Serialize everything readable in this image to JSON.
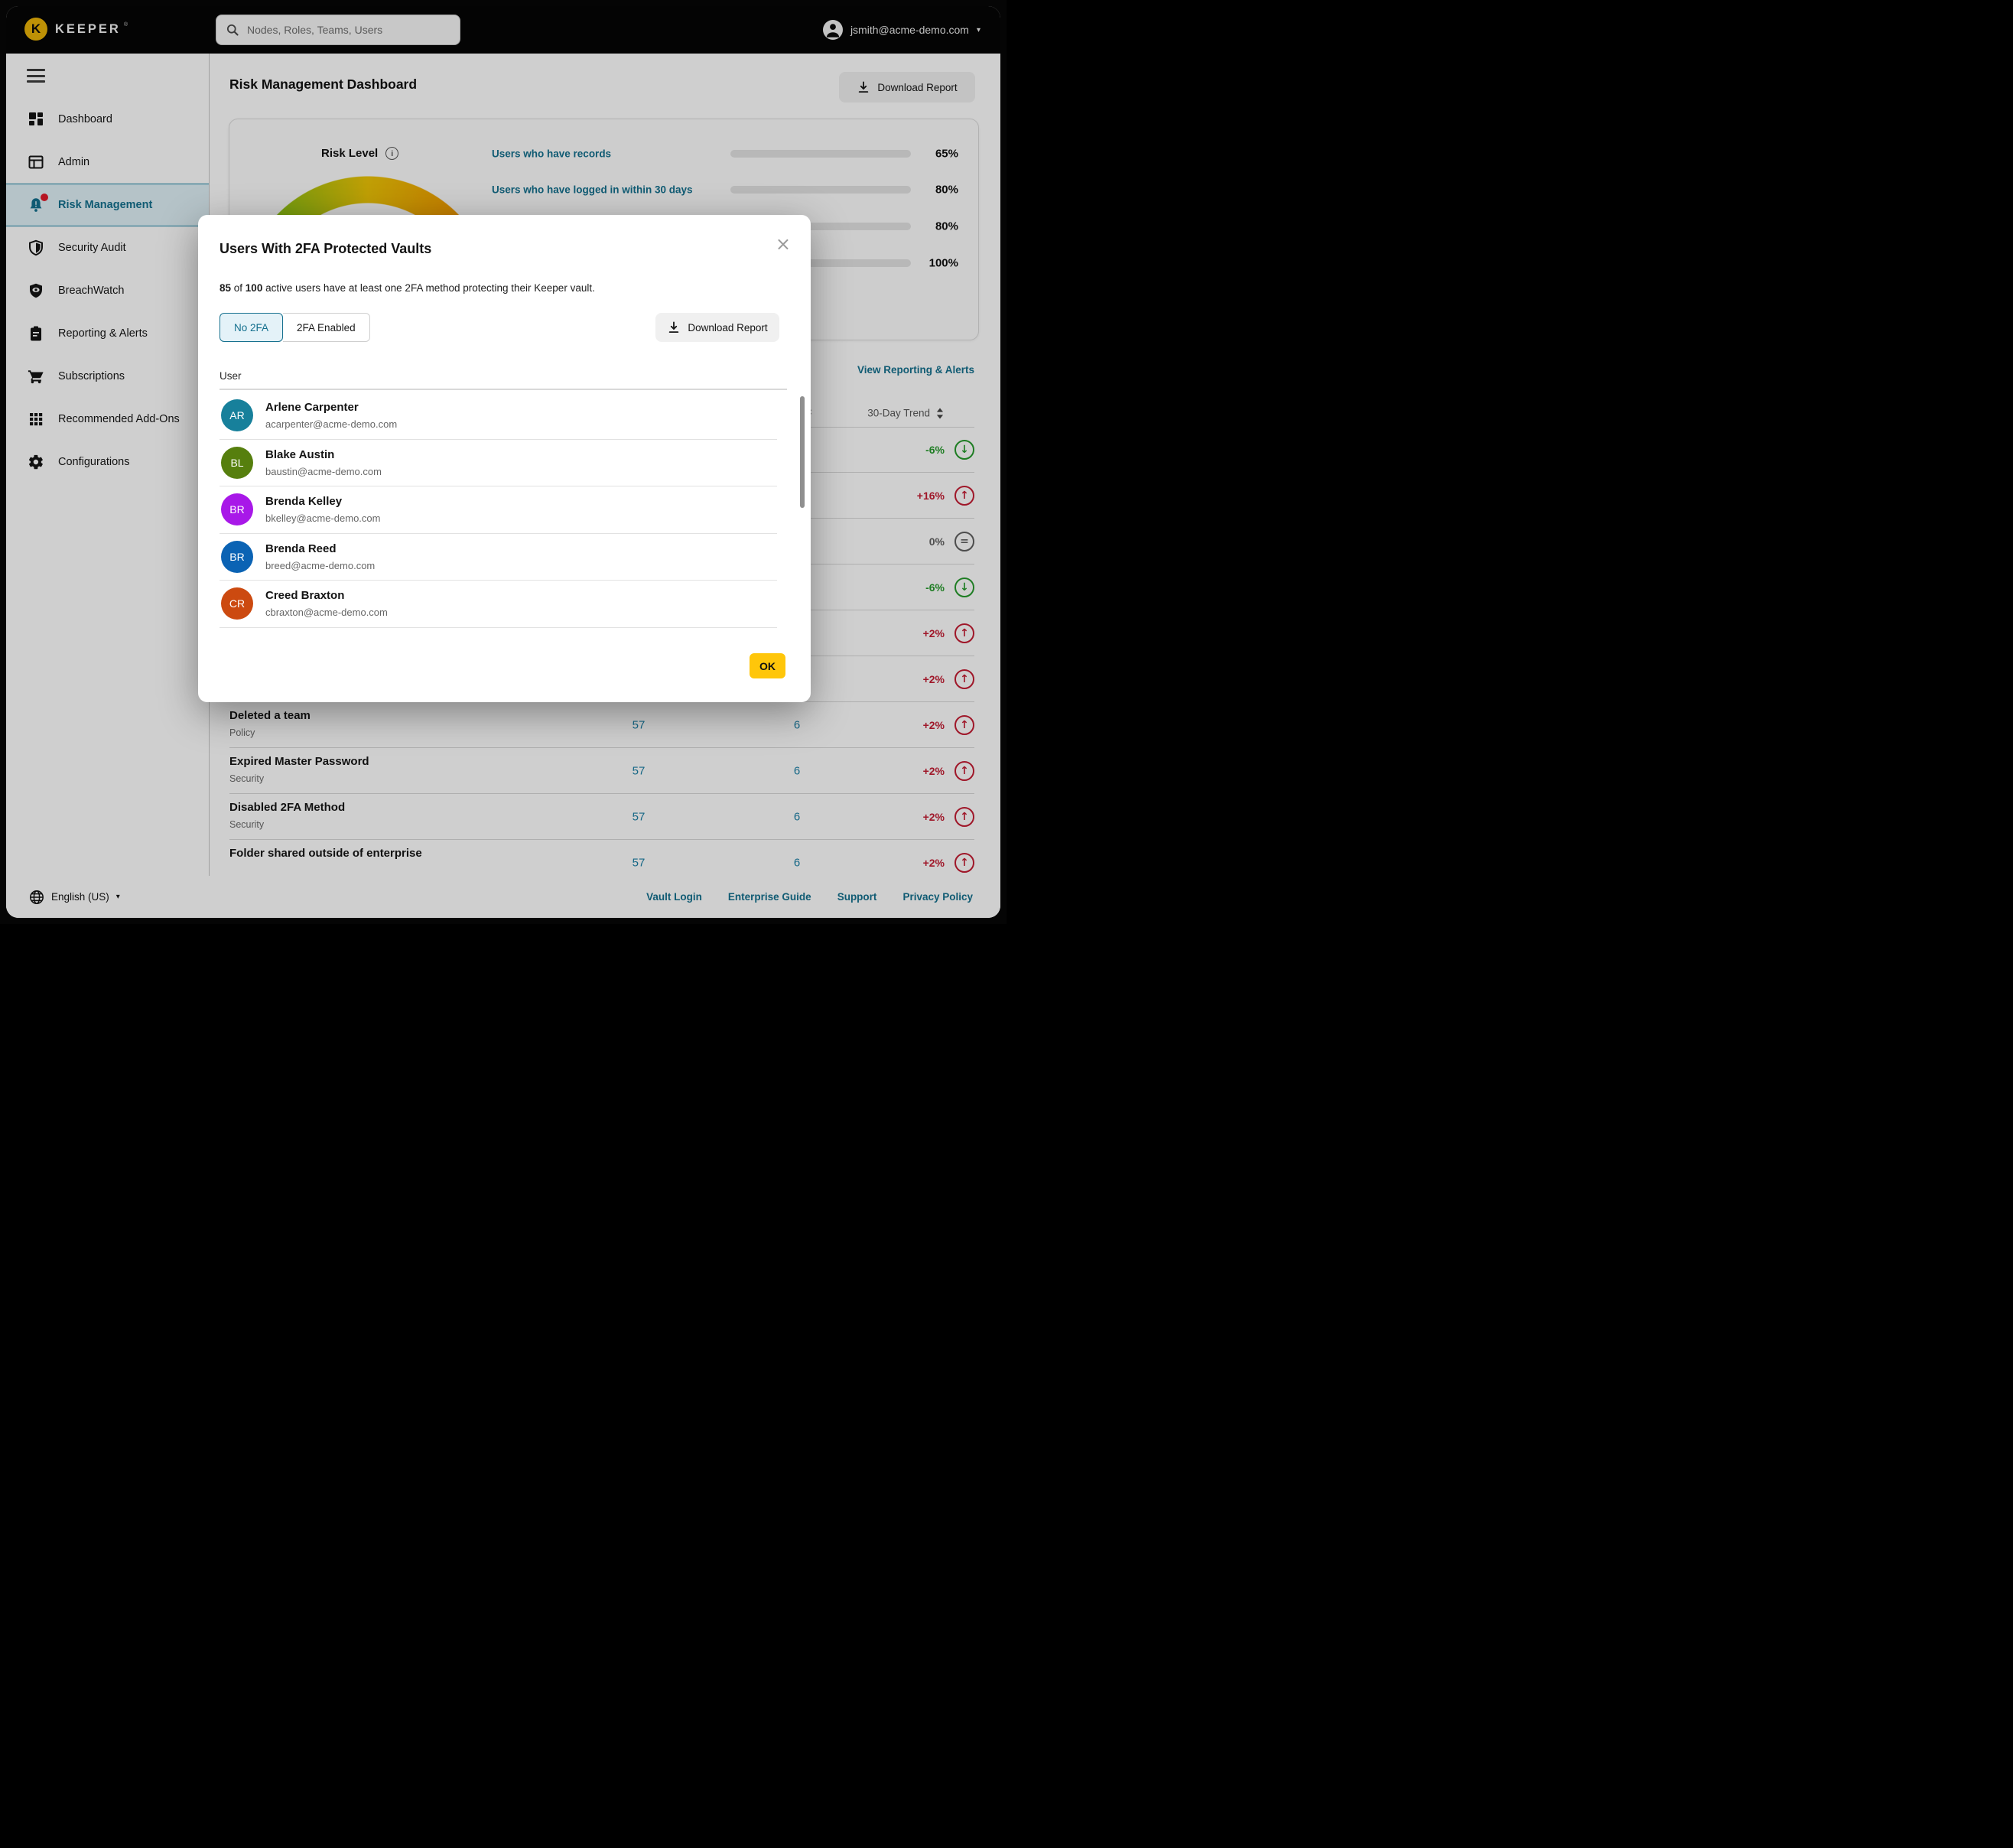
{
  "topbar": {
    "brand": "KEEPER",
    "brand_registered": "®",
    "search_placeholder": "Nodes, Roles, Teams, Users",
    "user_email": "jsmith@acme-demo.com",
    "caret": "▾"
  },
  "sidebar": {
    "items": [
      {
        "label": "Dashboard"
      },
      {
        "label": "Admin"
      },
      {
        "label": "Risk Management",
        "active": true
      },
      {
        "label": "Security Audit"
      },
      {
        "label": "BreachWatch"
      },
      {
        "label": "Reporting & Alerts"
      },
      {
        "label": "Subscriptions"
      },
      {
        "label": "Recommended Add-Ons"
      },
      {
        "label": "Configurations"
      }
    ]
  },
  "header": {
    "title": "Risk Management Dashboard",
    "download_report": "Download Report"
  },
  "risk_card": {
    "title": "Risk Level",
    "info_icon": "i",
    "metrics": [
      {
        "label": "Users who have records",
        "percent": "65%",
        "value": 65,
        "color": "#e87b00"
      },
      {
        "label": "Users who have logged in within 30 days",
        "percent": "80%",
        "value": 80,
        "color": "#2da23b"
      },
      {
        "label": "",
        "percent": "80%",
        "value": 80,
        "color": "#2da23b"
      },
      {
        "label": "",
        "percent": "100%",
        "value": 100,
        "color": "#2da23b"
      }
    ]
  },
  "reporting": {
    "view_link": "View Reporting & Alerts",
    "trend_column": "30-Day Trend",
    "partial_trends": [
      {
        "trend": "-6%",
        "dir": "down",
        "icon": "↓"
      },
      {
        "trend": "+16%",
        "dir": "up",
        "icon": "↑"
      },
      {
        "trend": "0%",
        "dir": "flat",
        "icon": "="
      },
      {
        "trend": "-6%",
        "dir": "down",
        "icon": "↓"
      },
      {
        "trend": "+2%",
        "dir": "up",
        "icon": "↑"
      },
      {
        "trend": "+2%",
        "dir": "up",
        "icon": "↑"
      }
    ],
    "rows": [
      {
        "name": "Deleted a team",
        "category": "Policy",
        "count": "57",
        "affected": "6",
        "trend": "+2%",
        "dir": "up",
        "icon": "↑"
      },
      {
        "name": "Expired Master Password",
        "category": "Security",
        "count": "57",
        "affected": "6",
        "trend": "+2%",
        "dir": "up",
        "icon": "↑"
      },
      {
        "name": "Disabled 2FA Method",
        "category": "Security",
        "count": "57",
        "affected": "6",
        "trend": "+2%",
        "dir": "up",
        "icon": "↑"
      },
      {
        "name": "Folder shared outside of enterprise",
        "category": "",
        "count": "57",
        "affected": "6",
        "trend": "+2%",
        "dir": "up",
        "icon": "↑"
      }
    ]
  },
  "modal": {
    "title": "Users With 2FA Protected Vaults",
    "close_icon": "×",
    "summary": {
      "bold1": "85",
      "mid": " of ",
      "bold2": "100",
      "rest": " active users have at least one 2FA method protecting their Keeper vault."
    },
    "tabs": [
      {
        "label": "No 2FA",
        "active": true
      },
      {
        "label": "2FA Enabled",
        "active": false
      }
    ],
    "download_report": "Download Report",
    "user_column": "User",
    "users": [
      {
        "initials": "AR",
        "name": "Arlene Carpenter",
        "email": "acarpenter@acme-demo.com",
        "color": "#17809b"
      },
      {
        "initials": "BL",
        "name": "Blake Austin",
        "email": "baustin@acme-demo.com",
        "color": "#567f0e"
      },
      {
        "initials": "BR",
        "name": "Brenda Kelley",
        "email": "bkelley@acme-demo.com",
        "color": "#a818e8"
      },
      {
        "initials": "BR",
        "name": "Brenda Reed",
        "email": "breed@acme-demo.com",
        "color": "#0b63b4"
      },
      {
        "initials": "CR",
        "name": "Creed Braxton",
        "email": "cbraxton@acme-demo.com",
        "color": "#cc4a10"
      }
    ],
    "ok": "OK"
  },
  "footer": {
    "language": "English (US)",
    "caret": "▾",
    "links": [
      "Vault Login",
      "Enterprise Guide",
      "Support",
      "Privacy Policy"
    ]
  },
  "colors": {
    "accent_teal": "#14708e",
    "ok_yellow": "#ffc60a",
    "trend_up_red": "#c41d33",
    "trend_down_green": "#269a2c",
    "trend_flat_gray": "#5f5f5f",
    "brand_gold": "#eab308"
  }
}
